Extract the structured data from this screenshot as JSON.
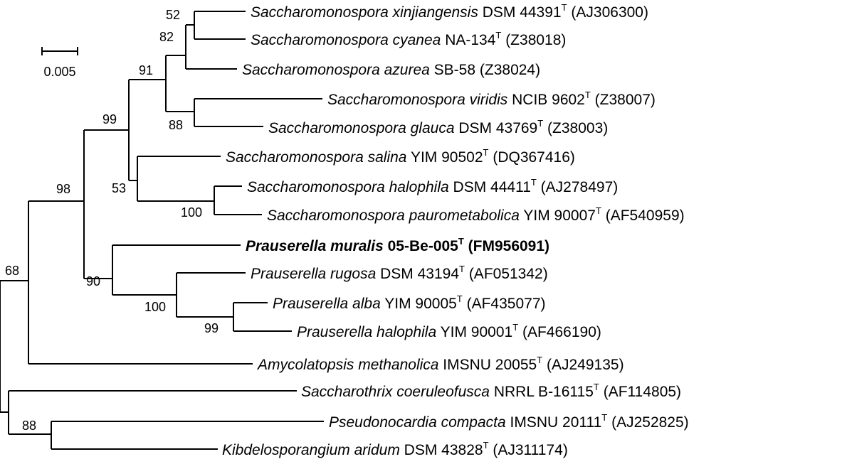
{
  "scale_bar": {
    "label": "0.005"
  },
  "taxa": [
    {
      "genus_species": "Saccharomonospora xinjiangensis",
      "strain": "DSM 44391",
      "type_strain": true,
      "accession": "(AJ306300)",
      "bold": false
    },
    {
      "genus_species": "Saccharomonospora cyanea",
      "strain": "NA-134",
      "type_strain": true,
      "accession": "(Z38018)",
      "bold": false
    },
    {
      "genus_species": "Saccharomonospora azurea",
      "strain": "SB-58",
      "type_strain": false,
      "accession": "(Z38024)",
      "bold": false
    },
    {
      "genus_species": "Saccharomonospora viridis",
      "strain": "NCIB 9602",
      "type_strain": true,
      "accession": "(Z38007)",
      "bold": false
    },
    {
      "genus_species": "Saccharomonospora glauca",
      "strain": "DSM 43769",
      "type_strain": true,
      "accession": "(Z38003)",
      "bold": false
    },
    {
      "genus_species": "Saccharomonospora salina",
      "strain": "YIM 90502",
      "type_strain": true,
      "accession": "(DQ367416)",
      "bold": false
    },
    {
      "genus_species": "Saccharomonospora halophila",
      "strain": "DSM 44411",
      "type_strain": true,
      "accession": "(AJ278497)",
      "bold": false
    },
    {
      "genus_species": "Saccharomonospora paurometabolica",
      "strain": "YIM 90007",
      "type_strain": true,
      "accession": "(AF540959)",
      "bold": false
    },
    {
      "genus_species": "Prauserella muralis",
      "strain": "05-Be-005",
      "type_strain": true,
      "accession": "(FM956091)",
      "bold": true
    },
    {
      "genus_species": "Prauserella rugosa",
      "strain": "DSM 43194",
      "type_strain": true,
      "accession": "(AF051342)",
      "bold": false
    },
    {
      "genus_species": "Prauserella alba",
      "strain": "YIM 90005",
      "type_strain": true,
      "accession": "(AF435077)",
      "bold": false
    },
    {
      "genus_species": "Prauserella halophila",
      "strain": "YIM 90001",
      "type_strain": true,
      "accession": "(AF466190)",
      "bold": false
    },
    {
      "genus_species": "Amycolatopsis methanolica",
      "strain": "IMSNU 20055",
      "type_strain": true,
      "accession": "(AJ249135)",
      "bold": false
    },
    {
      "genus_species": "Saccharothrix coeruleofusca",
      "strain": "NRRL B-16115",
      "type_strain": true,
      "accession": "(AF114805)",
      "bold": false
    },
    {
      "genus_species": "Pseudonocardia compacta",
      "strain": "IMSNU 20111",
      "type_strain": true,
      "accession": "(AJ252825)",
      "bold": false
    },
    {
      "genus_species": "Kibdelosporangium aridum",
      "strain": "DSM 43828",
      "type_strain": true,
      "accession": "(AJ311174)",
      "bold": false
    }
  ],
  "type_marker": "T",
  "bootstrap_values": [
    "52",
    "82",
    "91",
    "88",
    "99",
    "53",
    "100",
    "98",
    "90",
    "100",
    "99",
    "68",
    "88"
  ]
}
